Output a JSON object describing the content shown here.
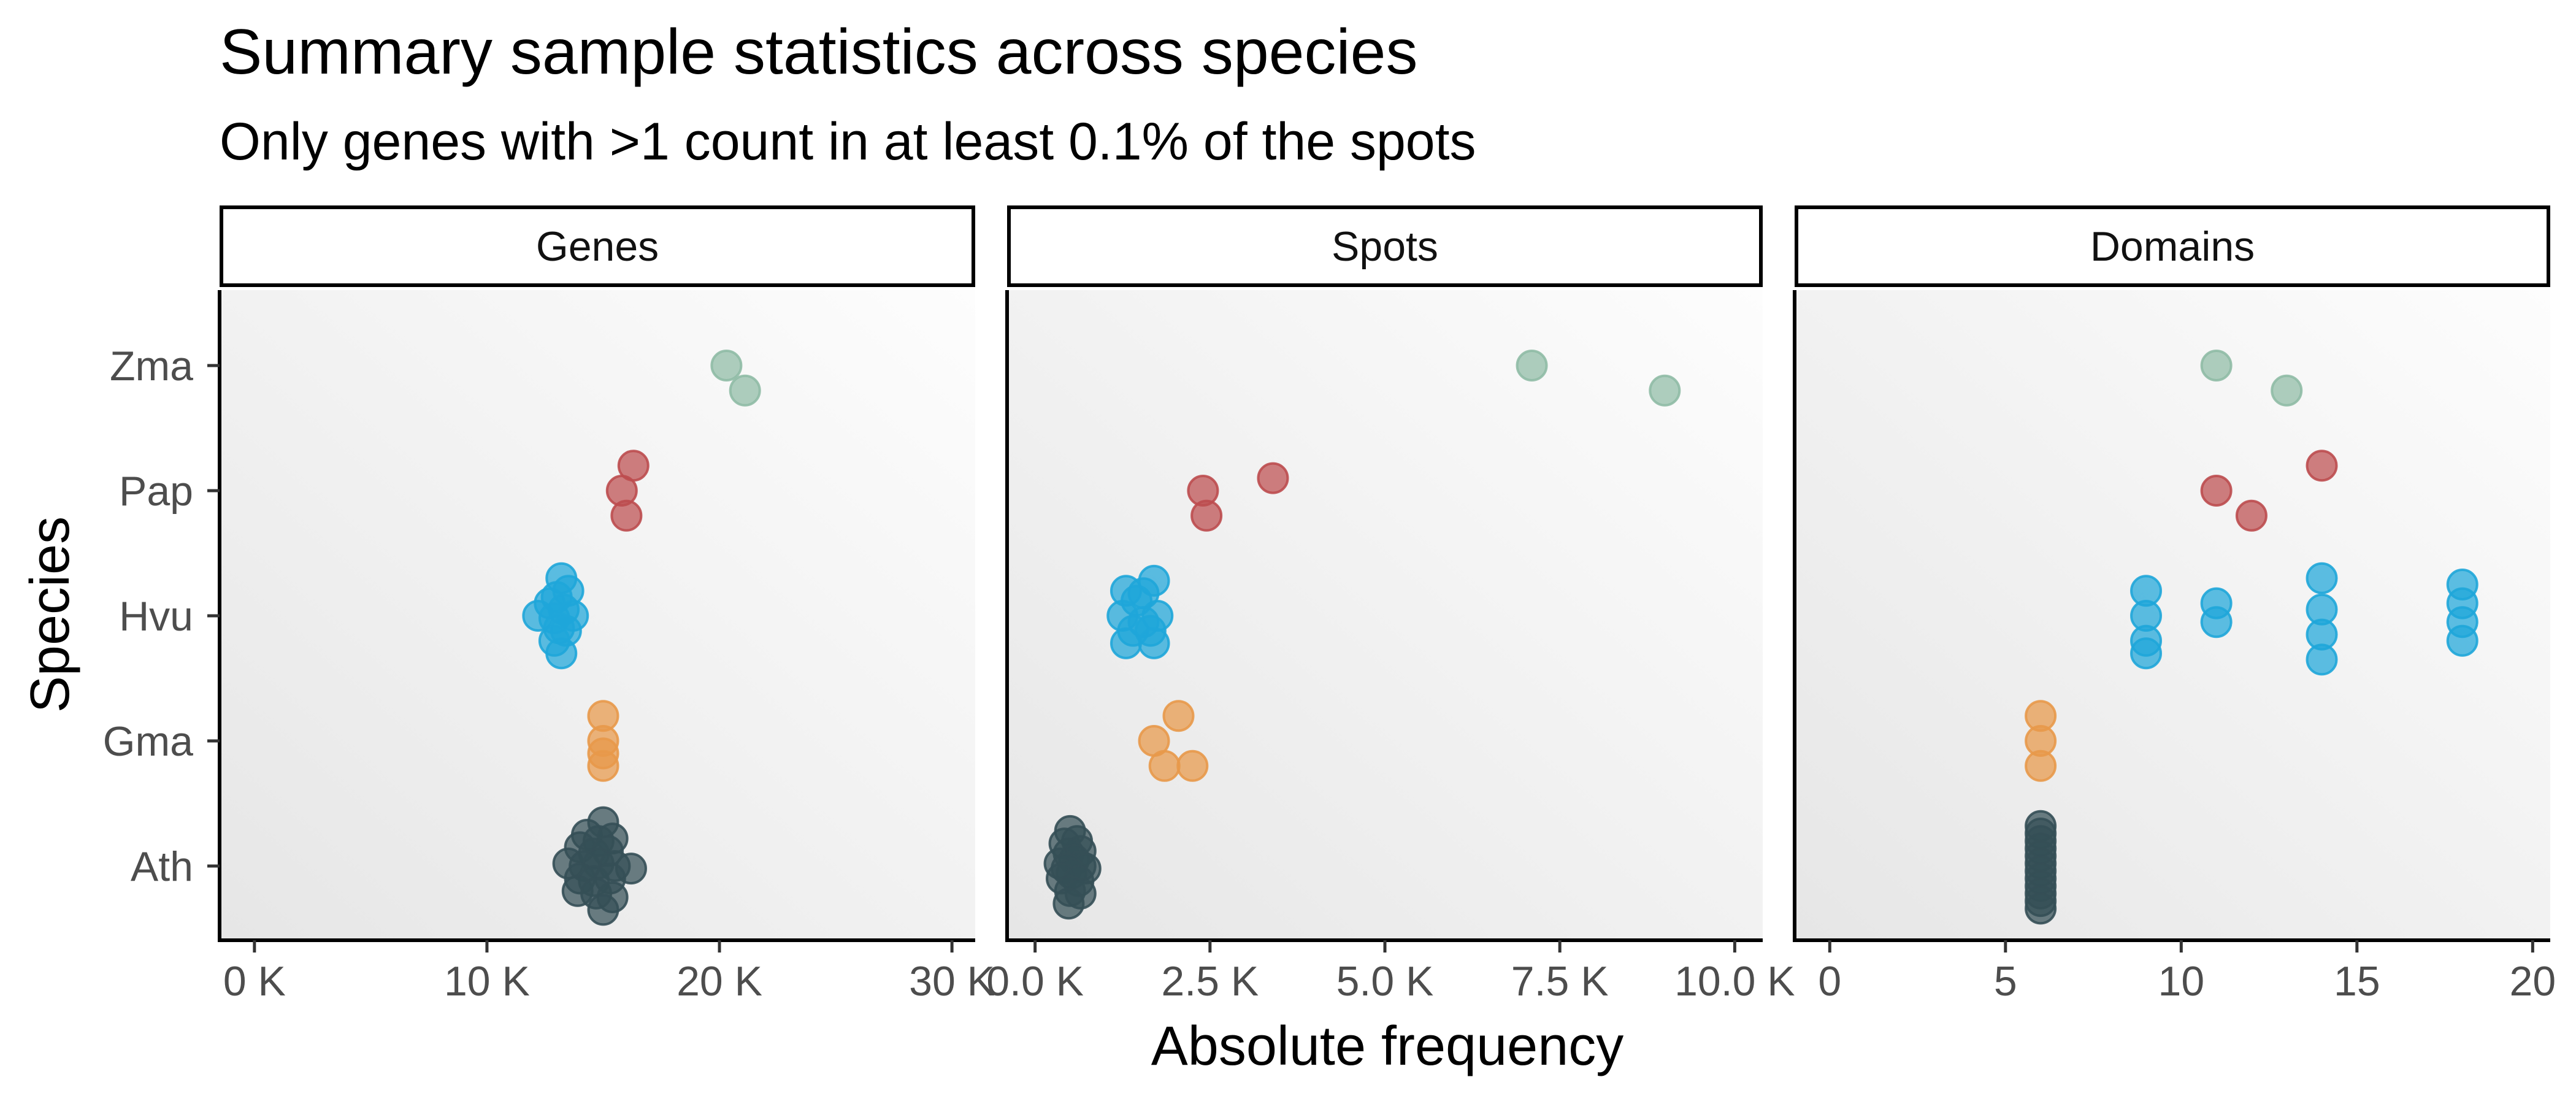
{
  "chart_data": {
    "type": "scatter",
    "title": "Summary sample statistics across species",
    "subtitle": "Only genes with >1 count in at least 0.1% of the spots",
    "xlabel": "Absolute frequency",
    "ylabel": "Species",
    "categories": [
      "Ath",
      "Gma",
      "Hvu",
      "Pap",
      "Zma"
    ],
    "colors": {
      "Ath": "#354f56",
      "Gma": "#e8994a",
      "Hvu": "#1fa6d9",
      "Pap": "#bd4d4f",
      "Zma": "#8fbba5"
    },
    "panels": [
      {
        "name": "Genes",
        "xlim": [
          -1500,
          31000
        ],
        "ticks": [
          0,
          10000,
          20000,
          30000
        ],
        "tick_labels": [
          "0 K",
          "10 K",
          "20 K",
          "30 K"
        ],
        "series": [
          {
            "name": "Zma",
            "points": [
              [
                20300,
                0.0
              ],
              [
                21100,
                -0.2
              ]
            ]
          },
          {
            "name": "Pap",
            "points": [
              [
                16300,
                0.2
              ],
              [
                15800,
                0.0
              ],
              [
                16000,
                -0.2
              ]
            ]
          },
          {
            "name": "Hvu",
            "points": [
              [
                13200,
                0.3
              ],
              [
                13500,
                0.2
              ],
              [
                13000,
                0.15
              ],
              [
                12700,
                0.1
              ],
              [
                13300,
                0.05
              ],
              [
                12200,
                0.0
              ],
              [
                12900,
                -0.02
              ],
              [
                13700,
                0.0
              ],
              [
                13100,
                -0.1
              ],
              [
                13400,
                -0.12
              ],
              [
                12900,
                -0.2
              ],
              [
                13200,
                -0.3
              ]
            ]
          },
          {
            "name": "Gma",
            "points": [
              [
                15000,
                0.2
              ],
              [
                15000,
                0.0
              ],
              [
                15000,
                -0.1
              ],
              [
                15000,
                -0.2
              ]
            ]
          },
          {
            "name": "Ath",
            "points": [
              [
                15000,
                0.35
              ],
              [
                14300,
                0.25
              ],
              [
                14800,
                0.2
              ],
              [
                15400,
                0.22
              ],
              [
                14000,
                0.15
              ],
              [
                14600,
                0.1
              ],
              [
                15200,
                0.12
              ],
              [
                13500,
                0.02
              ],
              [
                14200,
                0.0
              ],
              [
                14800,
                0.02
              ],
              [
                15500,
                0.0
              ],
              [
                16200,
                -0.02
              ],
              [
                14000,
                -0.1
              ],
              [
                14600,
                -0.12
              ],
              [
                15300,
                -0.1
              ],
              [
                13900,
                -0.2
              ],
              [
                14700,
                -0.22
              ],
              [
                15400,
                -0.25
              ],
              [
                15000,
                -0.35
              ]
            ]
          }
        ]
      },
      {
        "name": "Spots",
        "xlim": [
          -400,
          10400
        ],
        "ticks": [
          0,
          2500,
          5000,
          7500,
          10000
        ],
        "tick_labels": [
          "0.0 K",
          "2.5 K",
          "5.0 K",
          "7.5 K",
          "10.0 K"
        ],
        "series": [
          {
            "name": "Zma",
            "points": [
              [
                7100,
                0.0
              ],
              [
                9000,
                -0.2
              ]
            ]
          },
          {
            "name": "Pap",
            "points": [
              [
                3400,
                0.1
              ],
              [
                2400,
                0.0
              ],
              [
                2450,
                -0.2
              ]
            ]
          },
          {
            "name": "Hvu",
            "points": [
              [
                1700,
                0.28
              ],
              [
                1300,
                0.2
              ],
              [
                1550,
                0.18
              ],
              [
                1450,
                0.12
              ],
              [
                1250,
                0.0
              ],
              [
                1750,
                0.0
              ],
              [
                1550,
                -0.05
              ],
              [
                1400,
                -0.12
              ],
              [
                1650,
                -0.12
              ],
              [
                1300,
                -0.22
              ],
              [
                1700,
                -0.22
              ]
            ]
          },
          {
            "name": "Gma",
            "points": [
              [
                2050,
                0.2
              ],
              [
                1700,
                0.0
              ],
              [
                1850,
                -0.2
              ],
              [
                2250,
                -0.2
              ]
            ]
          },
          {
            "name": "Ath",
            "points": [
              [
                500,
                0.28
              ],
              [
                600,
                0.2
              ],
              [
                420,
                0.18
              ],
              [
                650,
                0.12
              ],
              [
                480,
                0.1
              ],
              [
                560,
                0.05
              ],
              [
                350,
                0.02
              ],
              [
                650,
                0.0
              ],
              [
                450,
                -0.02
              ],
              [
                720,
                -0.02
              ],
              [
                520,
                -0.06
              ],
              [
                380,
                -0.1
              ],
              [
                620,
                -0.12
              ],
              [
                500,
                -0.2
              ],
              [
                650,
                -0.22
              ],
              [
                480,
                -0.3
              ]
            ]
          }
        ]
      },
      {
        "name": "Domains",
        "xlim": [
          -1,
          20.5
        ],
        "ticks": [
          0,
          5,
          10,
          15,
          20
        ],
        "tick_labels": [
          "0",
          "5",
          "10",
          "15",
          "20"
        ],
        "series": [
          {
            "name": "Zma",
            "points": [
              [
                11,
                0.0
              ],
              [
                13,
                -0.2
              ]
            ]
          },
          {
            "name": "Pap",
            "points": [
              [
                14,
                0.2
              ],
              [
                11,
                0.0
              ],
              [
                12,
                -0.2
              ]
            ]
          },
          {
            "name": "Hvu",
            "points": [
              [
                9,
                0.2
              ],
              [
                9,
                0.0
              ],
              [
                9,
                -0.2
              ],
              [
                9,
                -0.3
              ],
              [
                11,
                0.1
              ],
              [
                11,
                -0.05
              ],
              [
                14,
                0.3
              ],
              [
                14,
                0.05
              ],
              [
                14,
                -0.15
              ],
              [
                14,
                -0.35
              ],
              [
                18,
                0.25
              ],
              [
                18,
                0.1
              ],
              [
                18,
                -0.05
              ],
              [
                18,
                -0.2
              ]
            ]
          },
          {
            "name": "Gma",
            "points": [
              [
                6,
                0.2
              ],
              [
                6,
                0.0
              ],
              [
                6,
                -0.2
              ]
            ]
          },
          {
            "name": "Ath",
            "points": [
              [
                6,
                0.32
              ],
              [
                6,
                0.26
              ],
              [
                6,
                0.2
              ],
              [
                6,
                0.14
              ],
              [
                6,
                0.08
              ],
              [
                6,
                0.02
              ],
              [
                6,
                -0.04
              ],
              [
                6,
                -0.1
              ],
              [
                6,
                -0.16
              ],
              [
                6,
                -0.22
              ],
              [
                6,
                -0.28
              ],
              [
                6,
                -0.34
              ]
            ]
          }
        ]
      }
    ]
  }
}
